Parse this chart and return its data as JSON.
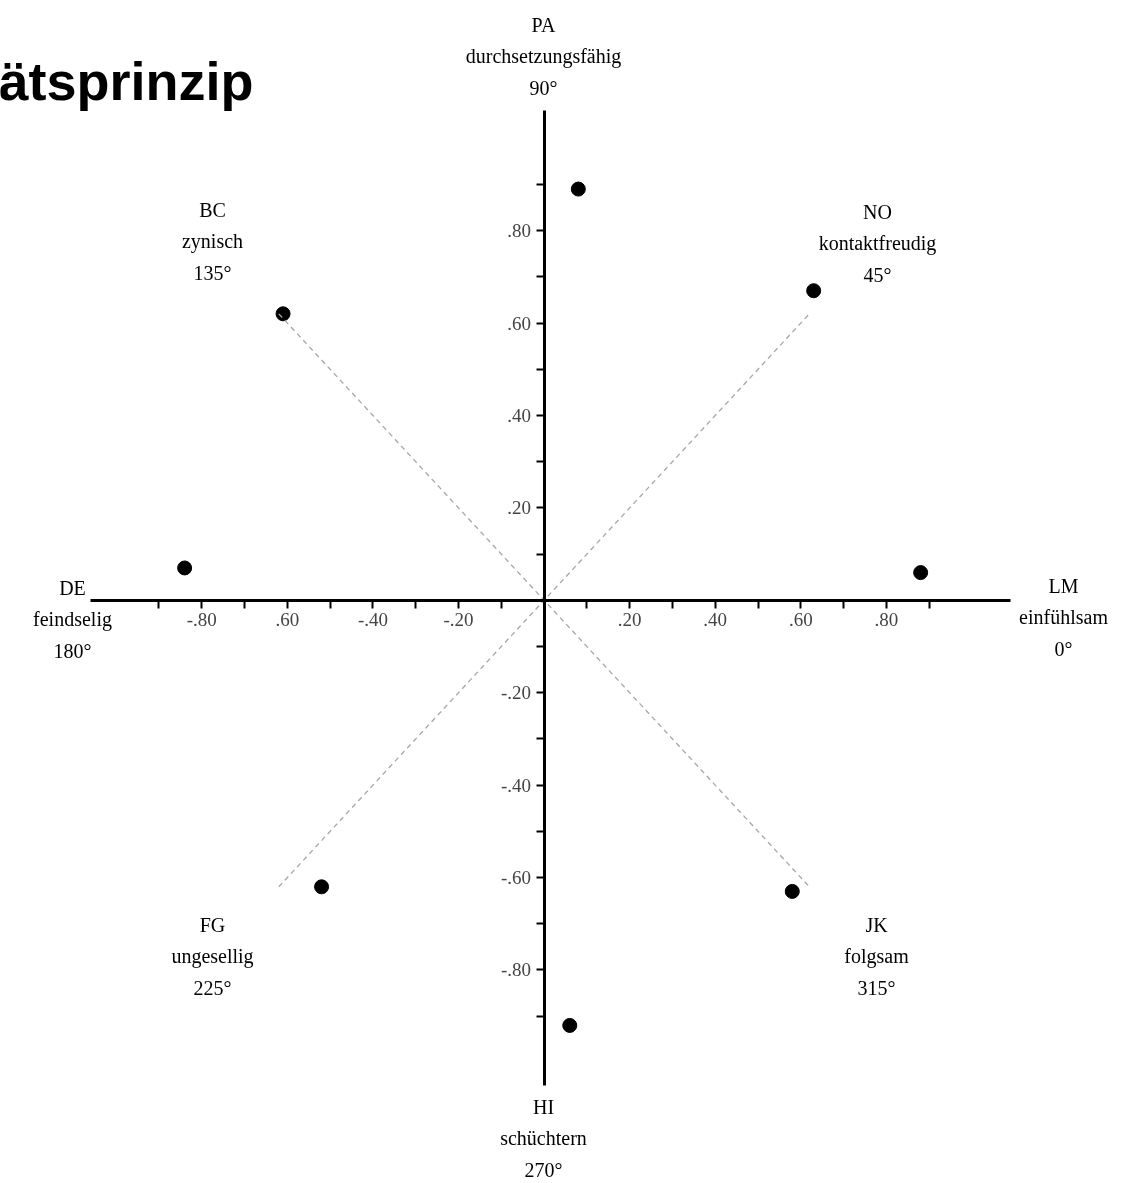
{
  "chart_data": {
    "type": "scatter",
    "title": "ätsprinzip",
    "xlim": [
      -1.06,
      1.09
    ],
    "ylim": [
      -1.05,
      1.06
    ],
    "xticks": [
      {
        "value": -0.9,
        "label": null
      },
      {
        "value": -0.8,
        "label": "-.80"
      },
      {
        "value": -0.7,
        "label": null
      },
      {
        "value": -0.6,
        "label": ".60"
      },
      {
        "value": -0.5,
        "label": null
      },
      {
        "value": -0.4,
        "label": "-.40"
      },
      {
        "value": -0.3,
        "label": null
      },
      {
        "value": -0.2,
        "label": "-.20"
      },
      {
        "value": -0.1,
        "label": null
      },
      {
        "value": 0.1,
        "label": null
      },
      {
        "value": 0.2,
        "label": ".20"
      },
      {
        "value": 0.3,
        "label": null
      },
      {
        "value": 0.4,
        "label": ".40"
      },
      {
        "value": 0.5,
        "label": null
      },
      {
        "value": 0.6,
        "label": ".60"
      },
      {
        "value": 0.7,
        "label": null
      },
      {
        "value": 0.8,
        "label": ".80"
      },
      {
        "value": 0.9,
        "label": null
      }
    ],
    "yticks": [
      {
        "value": -0.9,
        "label": null
      },
      {
        "value": -0.8,
        "label": "-.80"
      },
      {
        "value": -0.7,
        "label": null
      },
      {
        "value": -0.6,
        "label": "-.60"
      },
      {
        "value": -0.5,
        "label": null
      },
      {
        "value": -0.4,
        "label": "-.40"
      },
      {
        "value": -0.3,
        "label": null
      },
      {
        "value": -0.2,
        "label": "-.20"
      },
      {
        "value": -0.1,
        "label": null
      },
      {
        "value": 0.1,
        "label": null
      },
      {
        "value": 0.2,
        "label": ".20"
      },
      {
        "value": 0.3,
        "label": null
      },
      {
        "value": 0.4,
        "label": ".40"
      },
      {
        "value": 0.5,
        "label": null
      },
      {
        "value": 0.6,
        "label": ".60"
      },
      {
        "value": 0.7,
        "label": null
      },
      {
        "value": 0.8,
        "label": ".80"
      },
      {
        "value": 0.9,
        "label": null
      }
    ],
    "series": [
      {
        "color": "#000000",
        "marker": "circle",
        "x": [
          0.08,
          0.63,
          0.88,
          0.58,
          0.06,
          -0.52,
          -0.84,
          -0.61
        ],
        "values": [
          0.89,
          0.67,
          0.06,
          -0.63,
          -0.92,
          -0.62,
          0.07,
          0.62
        ]
      },
      {
        "type": "line",
        "color": "#a6a6a6",
        "line_style": "dashed",
        "x": [
          -0.62,
          0.62
        ],
        "values": [
          0.62,
          -0.62
        ]
      },
      {
        "type": "line",
        "color": "#a6a6a6",
        "line_style": "dashed",
        "x": [
          -0.62,
          0.62
        ],
        "values": [
          -0.62,
          0.62
        ]
      }
    ],
    "annotations": [
      "PA\ndurchsetzungsfähig\n90°",
      "BC\nzynisch\n135°",
      "NO\nkontaktfreudig\n45°",
      "DE\nfeindselig\n180°",
      "LM\neinfühlsam\n0°",
      "FG\nungesellig\n225°",
      "JK\nfolgsam\n315°",
      "HI\nschüchtern\n270°"
    ]
  }
}
